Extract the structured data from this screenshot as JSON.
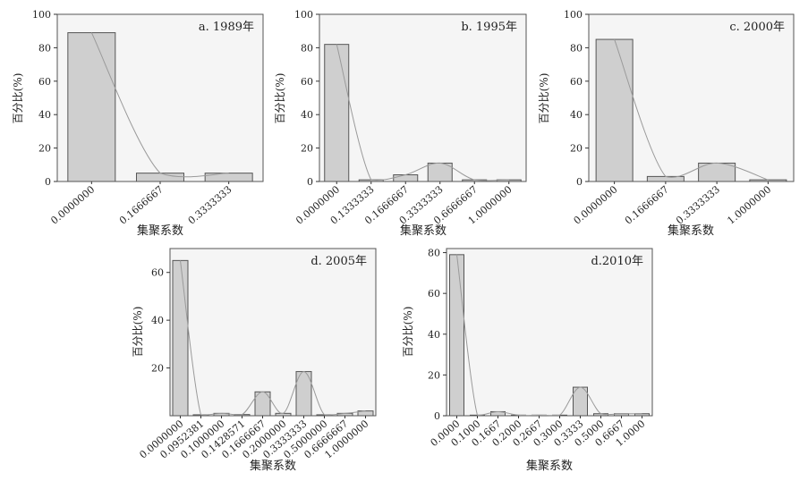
{
  "chart_data": [
    {
      "type": "bar",
      "title": "a. 1989年",
      "xlabel": "集聚系数",
      "ylabel": "百分比(%)",
      "ylim": [
        0,
        100
      ],
      "yticks": [
        0,
        20,
        40,
        60,
        80,
        100
      ],
      "categories": [
        "0.0000000",
        "0.1666667",
        "0.3333333"
      ],
      "values": [
        89,
        5,
        5
      ],
      "curve": true,
      "grid": false
    },
    {
      "type": "bar",
      "title": "b. 1995年",
      "xlabel": "集聚系数",
      "ylabel": "百分比(%)",
      "ylim": [
        0,
        100
      ],
      "yticks": [
        0,
        20,
        40,
        60,
        80,
        100
      ],
      "categories": [
        "0.0000000",
        "0.1333333",
        "0.1666667",
        "0.3333333",
        "0.6666667",
        "1.0000000"
      ],
      "values": [
        82,
        1,
        4,
        11,
        1,
        1
      ],
      "curve": true,
      "grid": false
    },
    {
      "type": "bar",
      "title": "c. 2000年",
      "xlabel": "集聚系数",
      "ylabel": "百分比(%)",
      "ylim": [
        0,
        100
      ],
      "yticks": [
        0,
        20,
        40,
        60,
        80,
        100
      ],
      "categories": [
        "0.0000000",
        "0.1666667",
        "0.3333333",
        "1.0000000"
      ],
      "values": [
        85,
        3,
        11,
        1
      ],
      "curve": true,
      "grid": false
    },
    {
      "type": "bar",
      "title": "d. 2005年",
      "xlabel": "集聚系数",
      "ylabel": "百分比(%)",
      "ylim": [
        0,
        70
      ],
      "yticks": [
        20,
        40,
        60
      ],
      "categories": [
        "0.0000000",
        "0.0952381",
        "0.1000000",
        "0.1428571",
        "0.1666667",
        "0.2000000",
        "0.3333333",
        "0.5000000",
        "0.6666667",
        "1.0000000"
      ],
      "values": [
        65,
        0.4,
        1,
        0.5,
        10,
        1,
        18.5,
        0.4,
        1,
        2
      ],
      "curve": true,
      "grid": false
    },
    {
      "type": "bar",
      "title": "d.2010年",
      "xlabel": "集聚系数",
      "ylabel": "百分比(%)",
      "ylim": [
        0,
        82
      ],
      "yticks": [
        0,
        20,
        40,
        60,
        80
      ],
      "categories": [
        "0.0000",
        "0.1000",
        "0.1667",
        "0.2000",
        "0.2667",
        "0.3000",
        "0.3333",
        "0.5000",
        "0.6667",
        "1.0000"
      ],
      "values": [
        79,
        0.3,
        2,
        0.3,
        0.3,
        0.3,
        14,
        1,
        1,
        1
      ],
      "curve": true,
      "grid": false
    }
  ]
}
